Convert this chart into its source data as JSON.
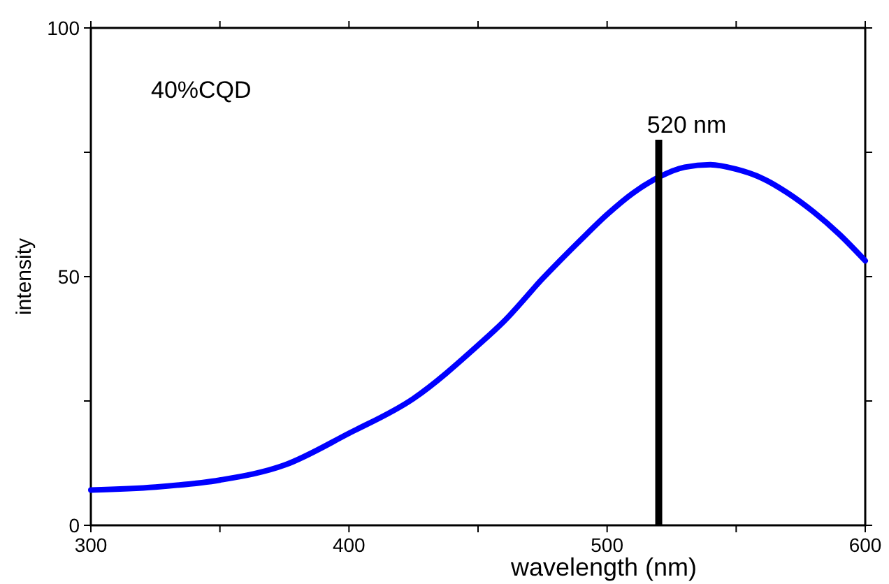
{
  "chart_data": {
    "type": "line",
    "xlabel": "wavelength (nm)",
    "ylabel": "intensity",
    "annotations": [
      "40%CQD"
    ],
    "x": [
      300,
      325,
      350,
      375,
      400,
      425,
      450,
      460,
      475,
      490,
      500,
      510,
      520,
      530,
      540,
      550,
      560,
      570,
      580,
      590,
      600
    ],
    "series": [
      {
        "color": "#0000ff",
        "values": [
          7.1,
          7.7,
          9.1,
          12.1,
          18.5,
          25.5,
          36.2,
          41,
          49.6,
          57.5,
          62.5,
          66.8,
          70,
          72,
          72.5,
          71.6,
          69.8,
          66.8,
          63,
          58.5,
          53.2
        ]
      }
    ],
    "xlim": [
      300,
      600
    ],
    "ylim": [
      0,
      100
    ],
    "xticks": [
      300,
      {
        "value": 350,
        "label": null
      },
      400,
      {
        "value": 450,
        "label": null
      },
      500,
      {
        "value": 550,
        "label": null
      },
      600
    ],
    "yticks": [
      0,
      {
        "value": 25,
        "label": null
      },
      50,
      {
        "value": 75,
        "label": null
      },
      100
    ],
    "ref_lines": [
      {
        "axis": "x",
        "value": 520,
        "label": "520 nm",
        "color": "#000000"
      }
    ],
    "grid": false,
    "marker": "none",
    "line_style": "solid"
  }
}
